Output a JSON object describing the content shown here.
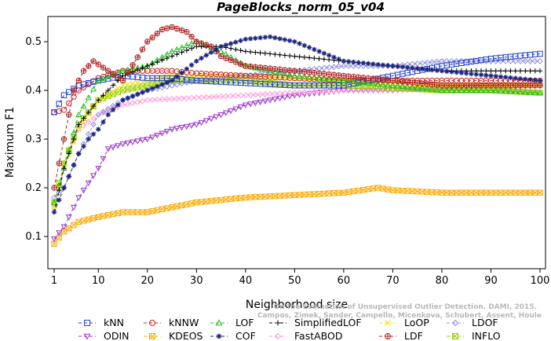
{
  "chart_data": {
    "type": "line",
    "title": "PageBlocks_norm_05_v04",
    "xlabel": "Neighborhood size",
    "ylabel": "Maximum F1",
    "xlim": [
      1,
      100
    ],
    "ylim": [
      0.08,
      0.55
    ],
    "xticks": [
      1,
      10,
      20,
      30,
      40,
      50,
      60,
      70,
      80,
      90,
      100
    ],
    "yticks": [
      0.1,
      0.2,
      0.3,
      0.4,
      0.5
    ],
    "grid": false,
    "legend_position": "bottom",
    "watermark": [
      "Campos, Zimek, Sander, Campello, Micenkova, Schubert, Assent, Houle",
      "On the Evaluation of Unsupervised Outlier Detection. DAMI, 2015."
    ],
    "series": [
      {
        "name": "kNN",
        "color": "#1f3fcf",
        "marker": "square",
        "line": "dash",
        "x": [
          1,
          3,
          6,
          10,
          15,
          20,
          25,
          30,
          40,
          50,
          60,
          70,
          80,
          90,
          100
        ],
        "y": [
          0.355,
          0.39,
          0.41,
          0.42,
          0.43,
          0.425,
          0.425,
          0.42,
          0.415,
          0.41,
          0.41,
          0.43,
          0.45,
          0.465,
          0.475
        ]
      },
      {
        "name": "kNNW",
        "color": "#cc1f1f",
        "marker": "circle",
        "line": "dash",
        "x": [
          1,
          3,
          6,
          10,
          15,
          20,
          25,
          30,
          40,
          50,
          60,
          70,
          80,
          90,
          100
        ],
        "y": [
          0.355,
          0.36,
          0.4,
          0.425,
          0.44,
          0.44,
          0.44,
          0.435,
          0.43,
          0.425,
          0.42,
          0.42,
          0.42,
          0.42,
          0.42
        ]
      },
      {
        "name": "LOF",
        "color": "#22bb22",
        "marker": "triangle-up",
        "line": "dash",
        "x": [
          1,
          3,
          6,
          10,
          15,
          20,
          25,
          30,
          35,
          40,
          50,
          60,
          70,
          80,
          90,
          100
        ],
        "y": [
          0.17,
          0.24,
          0.35,
          0.42,
          0.44,
          0.45,
          0.48,
          0.5,
          0.48,
          0.45,
          0.43,
          0.42,
          0.41,
          0.4,
          0.4,
          0.395
        ]
      },
      {
        "name": "SimplifiedLOF",
        "color": "#000000",
        "marker": "plus",
        "line": "dash",
        "x": [
          1,
          3,
          6,
          10,
          15,
          20,
          25,
          30,
          35,
          40,
          50,
          60,
          70,
          80,
          90,
          100
        ],
        "y": [
          0.15,
          0.24,
          0.33,
          0.38,
          0.43,
          0.45,
          0.47,
          0.49,
          0.49,
          0.48,
          0.47,
          0.46,
          0.45,
          0.44,
          0.44,
          0.44
        ]
      },
      {
        "name": "LoOP",
        "color": "#f0e000",
        "marker": "cross",
        "line": "dash",
        "x": [
          1,
          3,
          6,
          10,
          15,
          20,
          25,
          30,
          40,
          50,
          60,
          70,
          80,
          90,
          100
        ],
        "y": [
          0.16,
          0.24,
          0.32,
          0.38,
          0.41,
          0.42,
          0.43,
          0.43,
          0.43,
          0.425,
          0.42,
          0.415,
          0.41,
          0.41,
          0.41
        ]
      },
      {
        "name": "LDOF",
        "color": "#9090dd",
        "marker": "diamond",
        "line": "dash",
        "x": [
          1,
          3,
          6,
          10,
          15,
          20,
          25,
          30,
          40,
          50,
          60,
          70,
          80,
          90,
          100
        ],
        "y": [
          0.18,
          0.2,
          0.27,
          0.35,
          0.38,
          0.4,
          0.41,
          0.42,
          0.43,
          0.44,
          0.45,
          0.45,
          0.46,
          0.46,
          0.46
        ]
      },
      {
        "name": "ODIN",
        "color": "#9933cc",
        "marker": "triangle-down",
        "line": "dash",
        "x": [
          1,
          3,
          6,
          10,
          12,
          15,
          20,
          25,
          30,
          35,
          40,
          45,
          50,
          60,
          70,
          80,
          90,
          100
        ],
        "y": [
          0.095,
          0.12,
          0.18,
          0.24,
          0.28,
          0.29,
          0.3,
          0.32,
          0.33,
          0.35,
          0.37,
          0.38,
          0.39,
          0.4,
          0.4,
          0.405,
          0.41,
          0.41
        ]
      },
      {
        "name": "KDEOS",
        "color": "#ffaa00",
        "marker": "square-x",
        "line": "dash",
        "x": [
          1,
          3,
          6,
          10,
          15,
          20,
          25,
          30,
          40,
          50,
          60,
          67,
          70,
          80,
          90,
          100
        ],
        "y": [
          0.085,
          0.11,
          0.13,
          0.14,
          0.15,
          0.15,
          0.16,
          0.17,
          0.18,
          0.185,
          0.19,
          0.2,
          0.195,
          0.19,
          0.19,
          0.19
        ]
      },
      {
        "name": "COF",
        "color": "#1a237e",
        "marker": "asterisk",
        "line": "dash",
        "x": [
          1,
          3,
          6,
          8,
          10,
          12,
          15,
          20,
          25,
          30,
          35,
          40,
          45,
          50,
          55,
          60,
          70,
          80,
          90,
          100
        ],
        "y": [
          0.15,
          0.2,
          0.27,
          0.3,
          0.32,
          0.35,
          0.38,
          0.4,
          0.42,
          0.46,
          0.49,
          0.505,
          0.51,
          0.5,
          0.48,
          0.46,
          0.45,
          0.44,
          0.43,
          0.42
        ]
      },
      {
        "name": "FastABOD",
        "color": "#ff99dd",
        "marker": "diamond",
        "line": "dash",
        "x": [
          1,
          3,
          6,
          10,
          15,
          20,
          30,
          40,
          50,
          60,
          70,
          80,
          90,
          100
        ],
        "y": [
          0.16,
          0.25,
          0.32,
          0.35,
          0.37,
          0.38,
          0.385,
          0.39,
          0.395,
          0.4,
          0.4,
          0.405,
          0.405,
          0.41
        ]
      },
      {
        "name": "LDF",
        "color": "#b22222",
        "marker": "circle-plus",
        "line": "dash",
        "x": [
          1,
          3,
          5,
          7,
          9,
          12,
          15,
          20,
          23,
          25,
          28,
          30,
          33,
          35,
          40,
          50,
          60,
          70,
          80,
          90,
          100
        ],
        "y": [
          0.2,
          0.3,
          0.4,
          0.44,
          0.46,
          0.44,
          0.42,
          0.5,
          0.525,
          0.53,
          0.52,
          0.5,
          0.49,
          0.47,
          0.45,
          0.44,
          0.43,
          0.42,
          0.41,
          0.41,
          0.41
        ]
      },
      {
        "name": "INFLO",
        "color": "#99cc00",
        "marker": "square-x",
        "line": "dash",
        "x": [
          1,
          3,
          6,
          10,
          15,
          20,
          25,
          30,
          40,
          50,
          60,
          70,
          80,
          90,
          100
        ],
        "y": [
          0.17,
          0.25,
          0.33,
          0.38,
          0.4,
          0.41,
          0.42,
          0.42,
          0.42,
          0.41,
          0.41,
          0.405,
          0.4,
          0.4,
          0.395
        ]
      }
    ]
  }
}
